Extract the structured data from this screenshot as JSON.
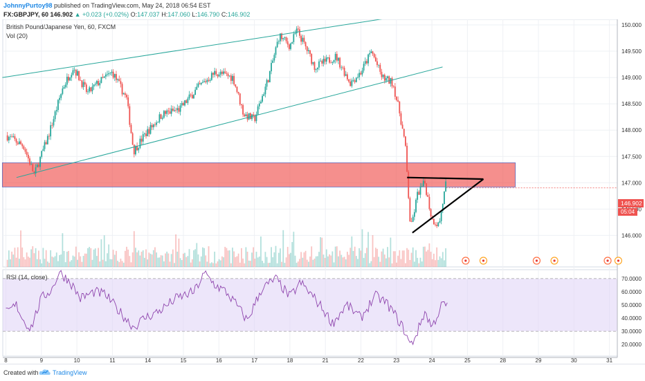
{
  "header": {
    "author": "JohnnyPurtoy98",
    "published_text": "published on TradingView.com, May 24, 2018 06:54 EST",
    "symbol": "FX:GBPJPY, 60",
    "last": "146.902",
    "change": "+0.023 (+0.02%)",
    "o_label": "O:",
    "o_value": "147.037",
    "h_label": "H:",
    "h_value": "147.060",
    "l_label": "L:",
    "l_value": "146.790",
    "c_label": "C:",
    "c_value": "146.902"
  },
  "legend": {
    "instrument": "British Pound/Japanese Yen, 60, FXCM",
    "volume": "Vol (20)",
    "rsi": "RSI (14, close)"
  },
  "price_tag": {
    "value": "146.902",
    "countdown": "05:04"
  },
  "footer": {
    "created_with": "Created with",
    "brand": "TradingView"
  },
  "colors": {
    "up": "#26a69a",
    "down": "#ef5350",
    "zone": "#ef5350",
    "rsi_line": "#8e44ad",
    "rsi_band": "#e1d5f7",
    "channel": "#26a69a"
  },
  "chart_data": [
    {
      "type": "candlestick",
      "title": "British Pound/Japanese Yen, 60, FXCM",
      "ylim": [
        145.8,
        150.2
      ],
      "y_ticks": [
        146.0,
        146.5,
        147.0,
        147.5,
        148.0,
        148.5,
        149.0,
        149.5,
        150.0
      ],
      "y_tick_labels": [
        "146.000",
        "146.500",
        "147.000",
        "147.500",
        "148.000",
        "148.500",
        "149.000",
        "149.500",
        "150.000"
      ],
      "x_labels": [
        "8",
        "9",
        "10",
        "11",
        "14",
        "15",
        "16",
        "17",
        "18",
        "21",
        "22",
        "23",
        "24",
        "25",
        "28",
        "29",
        "30",
        "31"
      ],
      "grid": true,
      "close_path": [
        [
          0,
          147.9
        ],
        [
          0.5,
          147.7
        ],
        [
          0.8,
          147.15
        ],
        [
          1.2,
          147.9
        ],
        [
          1.6,
          148.8
        ],
        [
          1.9,
          149.2
        ],
        [
          2.3,
          148.7
        ],
        [
          2.6,
          148.9
        ],
        [
          3.0,
          149.1
        ],
        [
          3.4,
          148.6
        ],
        [
          3.6,
          147.6
        ],
        [
          3.9,
          147.9
        ],
        [
          4.4,
          148.3
        ],
        [
          4.9,
          148.4
        ],
        [
          5.4,
          148.8
        ],
        [
          5.9,
          149.1
        ],
        [
          6.4,
          149.0
        ],
        [
          6.7,
          148.3
        ],
        [
          7.0,
          148.2
        ],
        [
          7.4,
          149.0
        ],
        [
          7.7,
          149.8
        ],
        [
          8.0,
          149.6
        ],
        [
          8.2,
          149.9
        ],
        [
          8.5,
          149.5
        ],
        [
          8.7,
          149.2
        ],
        [
          9.0,
          149.3
        ],
        [
          9.3,
          149.4
        ],
        [
          9.7,
          148.9
        ],
        [
          10.0,
          149.1
        ],
        [
          10.3,
          149.5
        ],
        [
          10.6,
          149.0
        ],
        [
          10.9,
          148.9
        ],
        [
          11.1,
          148.3
        ],
        [
          11.25,
          147.7
        ],
        [
          11.4,
          146.1
        ],
        [
          11.6,
          146.8
        ],
        [
          11.8,
          147.0
        ],
        [
          12.0,
          146.3
        ],
        [
          12.2,
          146.2
        ],
        [
          12.4,
          147.0
        ]
      ],
      "annotations": [
        {
          "kind": "zone",
          "y_from": 146.92,
          "y_to": 147.38,
          "x_from": -0.1,
          "x_to": 14.35
        },
        {
          "kind": "channel_upper",
          "points": [
            [
              -0.1,
              149.0
            ],
            [
              11.45,
              150.2
            ]
          ]
        },
        {
          "kind": "channel_lower",
          "points": [
            [
              0.3,
              147.1
            ],
            [
              12.3,
              149.2
            ]
          ]
        },
        {
          "kind": "triangle_top",
          "points": [
            [
              11.3,
              147.1
            ],
            [
              13.45,
              147.07
            ]
          ]
        },
        {
          "kind": "triangle_bottom",
          "points": [
            [
              11.45,
              146.05
            ],
            [
              13.45,
              147.07
            ]
          ]
        }
      ]
    },
    {
      "type": "bar",
      "title": "Vol (20)",
      "series": [
        {
          "name": "Vol (20)",
          "values": []
        }
      ]
    },
    {
      "type": "line",
      "title": "RSI (14, close)",
      "ylim": [
        10,
        78
      ],
      "y_ticks": [
        20,
        30,
        40,
        50,
        60,
        70
      ],
      "y_tick_labels": [
        "20.0000",
        "30.0000",
        "40.0000",
        "50.0000",
        "60.0000",
        "70.0000"
      ],
      "bands": [
        30,
        70
      ],
      "path": [
        [
          0,
          44
        ],
        [
          0.3,
          50
        ],
        [
          0.5,
          38
        ],
        [
          0.7,
          32
        ],
        [
          1.0,
          55
        ],
        [
          1.3,
          62
        ],
        [
          1.5,
          75
        ],
        [
          1.8,
          68
        ],
        [
          2.1,
          55
        ],
        [
          2.5,
          60
        ],
        [
          2.8,
          58
        ],
        [
          3.2,
          45
        ],
        [
          3.6,
          33
        ],
        [
          3.9,
          40
        ],
        [
          4.3,
          45
        ],
        [
          4.8,
          55
        ],
        [
          5.3,
          60
        ],
        [
          5.6,
          74
        ],
        [
          5.9,
          65
        ],
        [
          6.2,
          60
        ],
        [
          6.5,
          50
        ],
        [
          6.8,
          38
        ],
        [
          7.2,
          62
        ],
        [
          7.6,
          70
        ],
        [
          8.0,
          56
        ],
        [
          8.3,
          67
        ],
        [
          8.6,
          58
        ],
        [
          8.9,
          48
        ],
        [
          9.2,
          36
        ],
        [
          9.6,
          50
        ],
        [
          10.0,
          40
        ],
        [
          10.4,
          57
        ],
        [
          10.7,
          52
        ],
        [
          10.9,
          45
        ],
        [
          11.2,
          32
        ],
        [
          11.4,
          19
        ],
        [
          11.6,
          30
        ],
        [
          11.8,
          45
        ],
        [
          12.0,
          33
        ],
        [
          12.3,
          51
        ],
        [
          12.45,
          49
        ]
      ]
    }
  ]
}
